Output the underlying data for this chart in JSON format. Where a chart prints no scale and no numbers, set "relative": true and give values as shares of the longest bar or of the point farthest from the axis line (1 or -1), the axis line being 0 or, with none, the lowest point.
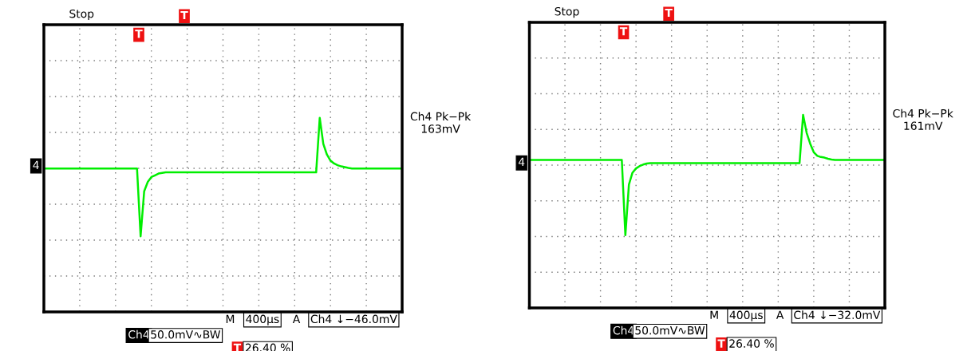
{
  "chart_data": [
    {
      "type": "line",
      "relative": true,
      "grid": true,
      "line_style": "solid",
      "marker": "none",
      "legend": false,
      "categories": [
        null,
        null,
        null,
        null,
        null,
        null,
        null,
        null,
        null,
        null,
        null,
        null,
        null,
        null,
        null,
        null,
        null,
        null,
        null,
        null,
        null,
        null,
        null,
        null,
        null,
        null,
        null,
        null,
        null,
        null,
        null,
        null,
        null,
        null,
        null,
        null,
        null,
        null,
        null,
        null,
        null,
        null,
        null,
        null,
        null,
        null,
        null,
        null,
        null,
        null,
        null,
        null,
        null,
        null,
        null,
        null,
        null,
        null,
        null,
        null,
        null,
        null,
        null,
        null,
        null,
        null,
        null,
        null,
        null,
        null,
        null,
        null,
        null,
        null,
        null,
        null,
        null,
        null,
        null,
        null,
        null,
        null,
        null,
        null,
        null,
        null,
        null,
        null,
        null,
        null,
        null,
        null,
        null,
        null,
        null,
        null,
        null,
        null,
        null,
        null,
        null
      ],
      "series": [
        {
          "color": "#00ee00",
          "values": [
            0.739,
            0.739,
            0.739,
            0.739,
            0.739,
            0.739,
            0.739,
            0.739,
            0.739,
            0.739,
            0.739,
            0.739,
            0.739,
            0.739,
            0.739,
            0.739,
            0.739,
            0.739,
            0.739,
            0.739,
            0.739,
            0.739,
            0.739,
            0.739,
            0.739,
            0.739,
            0.739,
            0.39,
            0.622,
            0.67,
            0.695,
            0.704,
            0.713,
            0.716,
            0.719,
            0.719,
            0.719,
            0.719,
            0.719,
            0.719,
            0.719,
            0.719,
            0.719,
            0.719,
            0.719,
            0.719,
            0.719,
            0.719,
            0.719,
            0.719,
            0.719,
            0.719,
            0.719,
            0.719,
            0.719,
            0.719,
            0.719,
            0.719,
            0.719,
            0.719,
            0.719,
            0.719,
            0.719,
            0.719,
            0.719,
            0.719,
            0.719,
            0.719,
            0.719,
            0.719,
            0.719,
            0.719,
            0.719,
            0.719,
            0.719,
            0.719,
            0.719,
            1,
            0.866,
            0.811,
            0.78,
            0.765,
            0.756,
            0.75,
            0.746,
            0.742,
            0.739,
            0.739,
            0.739,
            0.739,
            0.739,
            0.739,
            0.739,
            0.739,
            0.739,
            0.739,
            0.739,
            0.739,
            0.739,
            0.739,
            0.739
          ]
        }
      ],
      "annotations": [
        "Stop",
        "4",
        "T",
        "T",
        "Ch4 Pk−Pk\n163mV",
        "M",
        "400µs",
        "A",
        "Ch4 ↓−46.0mV",
        "Ch4",
        "50.0mV∿BW",
        "T",
        "26.40 %"
      ]
    },
    {
      "type": "line",
      "relative": true,
      "grid": true,
      "line_style": "solid",
      "marker": "none",
      "legend": false,
      "categories": [
        null,
        null,
        null,
        null,
        null,
        null,
        null,
        null,
        null,
        null,
        null,
        null,
        null,
        null,
        null,
        null,
        null,
        null,
        null,
        null,
        null,
        null,
        null,
        null,
        null,
        null,
        null,
        null,
        null,
        null,
        null,
        null,
        null,
        null,
        null,
        null,
        null,
        null,
        null,
        null,
        null,
        null,
        null,
        null,
        null,
        null,
        null,
        null,
        null,
        null,
        null,
        null,
        null,
        null,
        null,
        null,
        null,
        null,
        null,
        null,
        null,
        null,
        null,
        null,
        null,
        null,
        null,
        null,
        null,
        null,
        null,
        null,
        null,
        null,
        null,
        null,
        null,
        null,
        null,
        null,
        null,
        null,
        null,
        null,
        null,
        null,
        null,
        null,
        null,
        null,
        null,
        null,
        null,
        null,
        null,
        null,
        null,
        null,
        null,
        null,
        null
      ],
      "series": [
        {
          "color": "#00ee00",
          "values": [
            0.767,
            0.767,
            0.767,
            0.767,
            0.767,
            0.767,
            0.767,
            0.767,
            0.767,
            0.767,
            0.767,
            0.767,
            0.767,
            0.767,
            0.767,
            0.767,
            0.767,
            0.767,
            0.767,
            0.767,
            0.767,
            0.767,
            0.767,
            0.767,
            0.767,
            0.767,
            0.767,
            0.377,
            0.639,
            0.701,
            0.723,
            0.735,
            0.743,
            0.748,
            0.75,
            0.75,
            0.75,
            0.75,
            0.75,
            0.75,
            0.75,
            0.75,
            0.75,
            0.75,
            0.75,
            0.75,
            0.75,
            0.75,
            0.75,
            0.75,
            0.75,
            0.75,
            0.75,
            0.75,
            0.75,
            0.75,
            0.75,
            0.75,
            0.75,
            0.75,
            0.75,
            0.75,
            0.75,
            0.75,
            0.75,
            0.75,
            0.75,
            0.75,
            0.75,
            0.75,
            0.75,
            0.75,
            0.75,
            0.75,
            0.75,
            0.75,
            0.75,
            1,
            0.907,
            0.851,
            0.807,
            0.788,
            0.782,
            0.779,
            0.773,
            0.769,
            0.767,
            0.767,
            0.767,
            0.767,
            0.767,
            0.767,
            0.767,
            0.767,
            0.767,
            0.767,
            0.767,
            0.767,
            0.767,
            0.767,
            0.767
          ]
        }
      ],
      "annotations": [
        "Stop",
        "4",
        "T",
        "T",
        "Ch4 Pk−Pk\n161mV",
        "M",
        "400µs",
        "A",
        "Ch4 ↓−32.0mV",
        "Ch4",
        "50.0mV∿BW",
        "T",
        "26.40 %"
      ]
    }
  ]
}
